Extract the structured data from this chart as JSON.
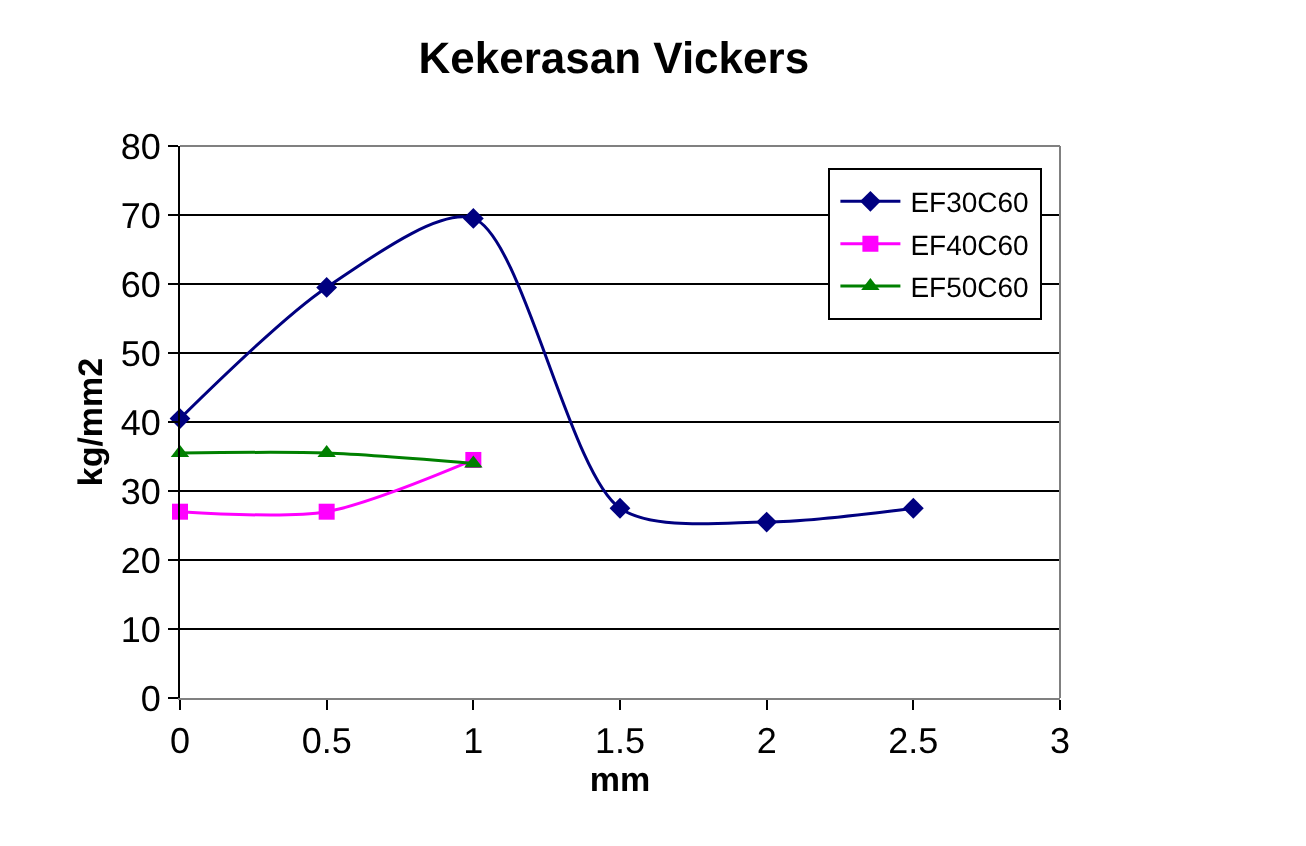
{
  "chart_data": {
    "type": "line",
    "title": "Kekerasan Vickers",
    "xlabel": "mm",
    "ylabel": "kg/mm2",
    "series": [
      {
        "name": "EF30C60",
        "color": "#000080",
        "marker": "diamond",
        "x": [
          0,
          0.5,
          1,
          1.5,
          2,
          2.5
        ],
        "values": [
          40.5,
          59.5,
          69.5,
          27.5,
          25.5,
          27.5
        ]
      },
      {
        "name": "EF40C60",
        "color": "#ff00ff",
        "marker": "square",
        "x": [
          0,
          0.5,
          1
        ],
        "values": [
          27,
          27,
          34.5
        ]
      },
      {
        "name": "EF50C60",
        "color": "#008000",
        "marker": "triangle",
        "x": [
          0,
          0.5,
          1
        ],
        "values": [
          35.5,
          35.5,
          34
        ]
      }
    ],
    "xlim": [
      0,
      3
    ],
    "xticks": [
      0,
      0.5,
      1,
      1.5,
      2,
      2.5,
      3
    ],
    "ylim": [
      0,
      80
    ],
    "yticks": [
      0,
      10,
      20,
      30,
      40,
      50,
      60,
      70,
      80
    ],
    "grid": "y",
    "legend": "top right",
    "line_style": "solid"
  }
}
